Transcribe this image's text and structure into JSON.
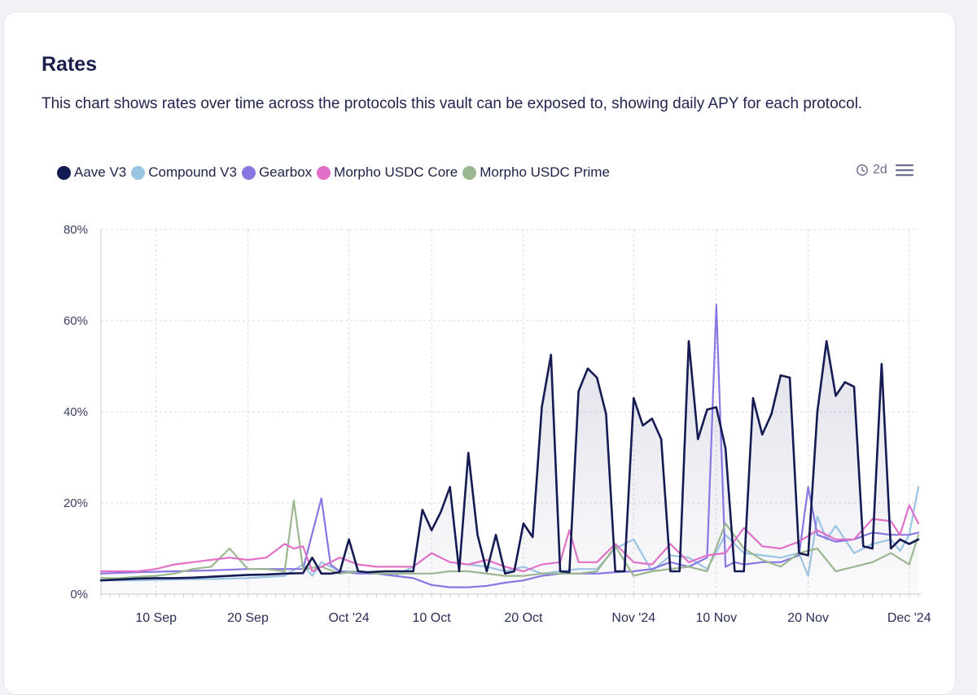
{
  "card": {
    "title": "Rates",
    "description": "This chart shows rates over time across the protocols this vault can be exposed to, showing daily APY for each protocol."
  },
  "toolbar": {
    "range_label": "2d",
    "clock_icon": "clock-icon",
    "menu_icon": "hamburger-menu-icon"
  },
  "chart_data": {
    "type": "line",
    "x_unit": "date",
    "ylim": [
      0,
      80
    ],
    "y_ticks": [
      "80%",
      "60%",
      "40%",
      "20%",
      "0%"
    ],
    "y_tick_values": [
      80,
      60,
      40,
      20,
      0
    ],
    "x_ticks": [
      {
        "label": "10 Sep",
        "date": "2024-09-10"
      },
      {
        "label": "20 Sep",
        "date": "2024-09-20"
      },
      {
        "label": "Oct '24",
        "date": "2024-10-01"
      },
      {
        "label": "10 Oct",
        "date": "2024-10-10"
      },
      {
        "label": "20 Oct",
        "date": "2024-10-20"
      },
      {
        "label": "Nov '24",
        "date": "2024-11-01"
      },
      {
        "label": "10 Nov",
        "date": "2024-11-10"
      },
      {
        "label": "20 Nov",
        "date": "2024-11-20"
      },
      {
        "label": "Dec '24",
        "date": "2024-12-01"
      }
    ],
    "grid": true,
    "legend_position": "top-left",
    "x_start": "2024-09-04",
    "x_end": "2024-12-02",
    "series": [
      {
        "name": "Aave V3",
        "color": "#141a52",
        "fill": true,
        "x": [
          "2024-09-04",
          "2024-09-06",
          "2024-09-08",
          "2024-09-10",
          "2024-09-12",
          "2024-09-14",
          "2024-09-16",
          "2024-09-18",
          "2024-09-20",
          "2024-09-22",
          "2024-09-24",
          "2024-09-26",
          "2024-09-27",
          "2024-09-28",
          "2024-09-29",
          "2024-09-30",
          "2024-10-01",
          "2024-10-02",
          "2024-10-03",
          "2024-10-04",
          "2024-10-05",
          "2024-10-06",
          "2024-10-07",
          "2024-10-08",
          "2024-10-09",
          "2024-10-10",
          "2024-10-11",
          "2024-10-12",
          "2024-10-13",
          "2024-10-14",
          "2024-10-15",
          "2024-10-16",
          "2024-10-17",
          "2024-10-18",
          "2024-10-19",
          "2024-10-20",
          "2024-10-21",
          "2024-10-22",
          "2024-10-23",
          "2024-10-24",
          "2024-10-25",
          "2024-10-26",
          "2024-10-27",
          "2024-10-28",
          "2024-10-29",
          "2024-10-30",
          "2024-10-31",
          "2024-11-01",
          "2024-11-02",
          "2024-11-03",
          "2024-11-04",
          "2024-11-05",
          "2024-11-06",
          "2024-11-07",
          "2024-11-08",
          "2024-11-09",
          "2024-11-10",
          "2024-11-11",
          "2024-11-12",
          "2024-11-13",
          "2024-11-14",
          "2024-11-15",
          "2024-11-16",
          "2024-11-17",
          "2024-11-18",
          "2024-11-19",
          "2024-11-20",
          "2024-11-21",
          "2024-11-22",
          "2024-11-23",
          "2024-11-24",
          "2024-11-25",
          "2024-11-26",
          "2024-11-27",
          "2024-11-28",
          "2024-11-29",
          "2024-11-30",
          "2024-12-01",
          "2024-12-02"
        ],
        "values": [
          3.0,
          3.2,
          3.4,
          3.5,
          3.5,
          3.6,
          3.8,
          4.0,
          4.2,
          4.3,
          4.5,
          4.6,
          8.0,
          4.5,
          4.5,
          4.8,
          12.0,
          5.0,
          4.8,
          4.9,
          5.0,
          5.0,
          5.0,
          5.0,
          18.5,
          14.0,
          18.0,
          23.5,
          5.0,
          31.0,
          13.0,
          5.0,
          13.0,
          4.5,
          5.0,
          15.5,
          12.5,
          41.0,
          52.5,
          5.0,
          4.8,
          44.5,
          49.5,
          47.5,
          39.5,
          5.0,
          5.0,
          43.0,
          37.0,
          38.5,
          34.0,
          5.0,
          5.0,
          55.5,
          34.0,
          40.5,
          41.0,
          32.0,
          5.0,
          5.0,
          43.0,
          35.0,
          39.5,
          48.0,
          47.5,
          9.0,
          8.5,
          40.0,
          55.5,
          43.5,
          46.5,
          45.5,
          10.5,
          10.0,
          50.5,
          10.0,
          12.0,
          11.0,
          12.0
        ]
      },
      {
        "name": "Compound V3",
        "color": "#9bc3e2",
        "x": [
          "2024-09-04",
          "2024-09-08",
          "2024-09-12",
          "2024-09-16",
          "2024-09-20",
          "2024-09-24",
          "2024-09-26",
          "2024-09-27",
          "2024-09-28",
          "2024-09-30",
          "2024-10-02",
          "2024-10-04",
          "2024-10-06",
          "2024-10-08",
          "2024-10-10",
          "2024-10-12",
          "2024-10-14",
          "2024-10-16",
          "2024-10-18",
          "2024-10-20",
          "2024-10-22",
          "2024-10-24",
          "2024-10-26",
          "2024-10-28",
          "2024-10-30",
          "2024-11-01",
          "2024-11-03",
          "2024-11-05",
          "2024-11-07",
          "2024-11-09",
          "2024-11-11",
          "2024-11-13",
          "2024-11-15",
          "2024-11-17",
          "2024-11-19",
          "2024-11-20",
          "2024-11-21",
          "2024-11-22",
          "2024-11-23",
          "2024-11-25",
          "2024-11-27",
          "2024-11-29",
          "2024-11-30",
          "2024-12-01",
          "2024-12-02"
        ],
        "values": [
          3.0,
          3.0,
          3.2,
          3.3,
          3.5,
          4.0,
          6.5,
          4.0,
          7.0,
          5.0,
          5.0,
          4.5,
          4.0,
          6.0,
          9.0,
          7.0,
          6.5,
          6.0,
          5.0,
          6.0,
          4.5,
          5.0,
          5.5,
          5.5,
          10.0,
          12.0,
          5.0,
          8.5,
          8.0,
          5.5,
          13.0,
          9.0,
          8.5,
          8.0,
          9.0,
          4.0,
          17.0,
          12.0,
          15.0,
          9.0,
          11.0,
          12.0,
          9.5,
          13.0,
          23.5
        ]
      },
      {
        "name": "Gearbox",
        "color": "#8677e3",
        "x": [
          "2024-09-04",
          "2024-09-08",
          "2024-09-12",
          "2024-09-16",
          "2024-09-20",
          "2024-09-24",
          "2024-09-26",
          "2024-09-28",
          "2024-09-29",
          "2024-09-30",
          "2024-10-02",
          "2024-10-04",
          "2024-10-06",
          "2024-10-08",
          "2024-10-10",
          "2024-10-12",
          "2024-10-14",
          "2024-10-16",
          "2024-10-18",
          "2024-10-20",
          "2024-10-22",
          "2024-10-24",
          "2024-10-26",
          "2024-10-28",
          "2024-10-30",
          "2024-11-01",
          "2024-11-03",
          "2024-11-05",
          "2024-11-07",
          "2024-11-09",
          "2024-11-10",
          "2024-11-11",
          "2024-11-12",
          "2024-11-13",
          "2024-11-15",
          "2024-11-17",
          "2024-11-19",
          "2024-11-20",
          "2024-11-21",
          "2024-11-23",
          "2024-11-25",
          "2024-11-27",
          "2024-11-29",
          "2024-12-01",
          "2024-12-02"
        ],
        "values": [
          4.5,
          4.8,
          5.0,
          5.2,
          5.5,
          5.5,
          5.5,
          21.0,
          6.5,
          5.0,
          4.5,
          4.5,
          4.0,
          3.5,
          2.0,
          1.5,
          1.5,
          1.8,
          2.5,
          3.0,
          4.0,
          4.5,
          4.5,
          4.5,
          4.8,
          5.0,
          5.5,
          7.0,
          6.0,
          8.0,
          63.5,
          6.0,
          7.0,
          6.5,
          7.0,
          7.0,
          8.5,
          23.5,
          13.0,
          11.5,
          12.0,
          13.5,
          13.0,
          13.0,
          13.5
        ]
      },
      {
        "name": "Morpho USDC Core",
        "color": "#e070c8",
        "x": [
          "2024-09-04",
          "2024-09-06",
          "2024-09-08",
          "2024-09-10",
          "2024-09-12",
          "2024-09-14",
          "2024-09-16",
          "2024-09-18",
          "2024-09-20",
          "2024-09-22",
          "2024-09-24",
          "2024-09-25",
          "2024-09-26",
          "2024-09-27",
          "2024-09-28",
          "2024-09-30",
          "2024-10-02",
          "2024-10-04",
          "2024-10-06",
          "2024-10-08",
          "2024-10-10",
          "2024-10-12",
          "2024-10-14",
          "2024-10-16",
          "2024-10-18",
          "2024-10-20",
          "2024-10-22",
          "2024-10-24",
          "2024-10-25",
          "2024-10-26",
          "2024-10-28",
          "2024-10-30",
          "2024-11-01",
          "2024-11-03",
          "2024-11-05",
          "2024-11-07",
          "2024-11-09",
          "2024-11-11",
          "2024-11-13",
          "2024-11-15",
          "2024-11-17",
          "2024-11-19",
          "2024-11-21",
          "2024-11-23",
          "2024-11-25",
          "2024-11-27",
          "2024-11-29",
          "2024-11-30",
          "2024-12-01",
          "2024-12-02"
        ],
        "values": [
          5.0,
          5.0,
          5.0,
          5.5,
          6.5,
          7.0,
          7.5,
          8.0,
          7.5,
          8.0,
          11.0,
          10.0,
          10.5,
          5.0,
          6.0,
          8.0,
          6.5,
          6.0,
          6.0,
          6.0,
          9.0,
          7.0,
          6.5,
          7.5,
          6.0,
          5.0,
          6.5,
          7.0,
          14.0,
          7.0,
          7.0,
          11.0,
          7.0,
          6.5,
          11.0,
          7.0,
          8.5,
          9.0,
          14.5,
          10.5,
          10.0,
          11.5,
          14.0,
          12.0,
          12.0,
          16.5,
          16.0,
          13.0,
          19.5,
          15.5
        ]
      },
      {
        "name": "Morpho USDC Prime",
        "color": "#9ab78f",
        "x": [
          "2024-09-04",
          "2024-09-06",
          "2024-09-08",
          "2024-09-10",
          "2024-09-12",
          "2024-09-14",
          "2024-09-16",
          "2024-09-18",
          "2024-09-20",
          "2024-09-22",
          "2024-09-24",
          "2024-09-25",
          "2024-09-26",
          "2024-09-28",
          "2024-09-30",
          "2024-10-02",
          "2024-10-04",
          "2024-10-06",
          "2024-10-08",
          "2024-10-10",
          "2024-10-12",
          "2024-10-14",
          "2024-10-16",
          "2024-10-18",
          "2024-10-20",
          "2024-10-22",
          "2024-10-24",
          "2024-10-26",
          "2024-10-28",
          "2024-10-30",
          "2024-11-01",
          "2024-11-03",
          "2024-11-05",
          "2024-11-07",
          "2024-11-09",
          "2024-11-11",
          "2024-11-13",
          "2024-11-15",
          "2024-11-17",
          "2024-11-19",
          "2024-11-21",
          "2024-11-23",
          "2024-11-25",
          "2024-11-27",
          "2024-11-29",
          "2024-12-01",
          "2024-12-02"
        ],
        "values": [
          3.5,
          3.5,
          3.8,
          4.0,
          4.5,
          5.5,
          6.0,
          10.0,
          5.5,
          5.5,
          5.0,
          20.5,
          5.5,
          6.0,
          4.5,
          5.0,
          4.5,
          4.5,
          4.5,
          4.5,
          5.0,
          5.0,
          4.5,
          4.0,
          4.0,
          4.5,
          4.5,
          4.5,
          5.0,
          10.5,
          4.0,
          5.0,
          5.5,
          6.0,
          5.0,
          15.5,
          10.0,
          7.5,
          6.0,
          9.0,
          10.0,
          5.0,
          6.0,
          7.0,
          9.0,
          6.5,
          13.0
        ]
      }
    ]
  }
}
